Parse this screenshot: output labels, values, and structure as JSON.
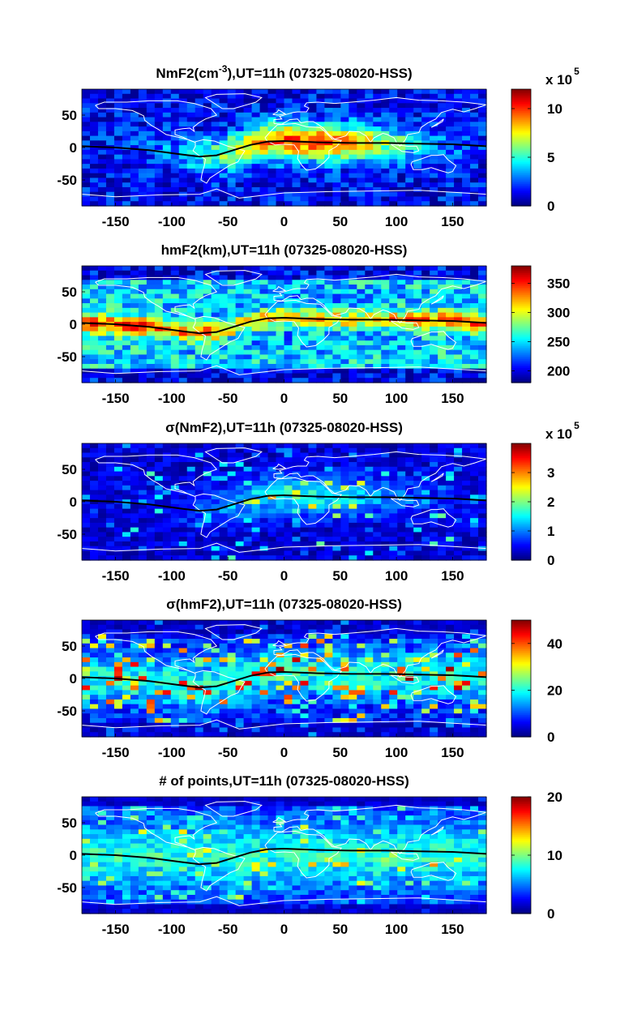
{
  "chart_data": [
    {
      "type": "heatmap",
      "title_main": "NmF2(cm",
      "title_sup": "-3",
      "title_rest": "),UT=11h (07325-08020-HSS)",
      "x_ticks": [
        -150,
        -100,
        -50,
        0,
        50,
        100,
        150
      ],
      "y_ticks": [
        50,
        0,
        -50
      ],
      "xlim": [
        -180,
        180
      ],
      "ylim": [
        -90,
        90
      ],
      "colorbar": {
        "ticks": [
          0,
          5,
          10
        ],
        "min": 0,
        "max": 12,
        "multiplier_text": "x 10",
        "multiplier_exp": "5"
      },
      "field_profile": "nmf2",
      "seed": 11
    },
    {
      "type": "heatmap",
      "title_main": "hmF2(km),UT=11h (07325-08020-HSS)",
      "title_sup": "",
      "title_rest": "",
      "x_ticks": [
        -150,
        -100,
        -50,
        0,
        50,
        100,
        150
      ],
      "y_ticks": [
        50,
        0,
        -50
      ],
      "xlim": [
        -180,
        180
      ],
      "ylim": [
        -90,
        90
      ],
      "colorbar": {
        "ticks": [
          200,
          250,
          300,
          350
        ],
        "min": 180,
        "max": 380,
        "multiplier_text": "",
        "multiplier_exp": ""
      },
      "field_profile": "hmf2",
      "seed": 23
    },
    {
      "type": "heatmap",
      "title_main": "σ(NmF2),UT=11h (07325-08020-HSS)",
      "title_sup": "",
      "title_rest": "",
      "x_ticks": [
        -150,
        -100,
        -50,
        0,
        50,
        100,
        150
      ],
      "y_ticks": [
        50,
        0,
        -50
      ],
      "xlim": [
        -180,
        180
      ],
      "ylim": [
        -90,
        90
      ],
      "colorbar": {
        "ticks": [
          0,
          1,
          2,
          3
        ],
        "min": 0,
        "max": 4,
        "multiplier_text": "x 10",
        "multiplier_exp": "5"
      },
      "field_profile": "signmf2",
      "seed": 37
    },
    {
      "type": "heatmap",
      "title_main": "σ(hmF2),UT=11h (07325-08020-HSS)",
      "title_sup": "",
      "title_rest": "",
      "x_ticks": [
        -150,
        -100,
        -50,
        0,
        50,
        100,
        150
      ],
      "y_ticks": [
        50,
        0,
        -50
      ],
      "xlim": [
        -180,
        180
      ],
      "ylim": [
        -90,
        90
      ],
      "colorbar": {
        "ticks": [
          0,
          20,
          40
        ],
        "min": 0,
        "max": 50,
        "multiplier_text": "",
        "multiplier_exp": ""
      },
      "field_profile": "sighmf2",
      "seed": 41
    },
    {
      "type": "heatmap",
      "title_main": "# of points,UT=11h (07325-08020-HSS)",
      "title_sup": "",
      "title_rest": "",
      "x_ticks": [
        -150,
        -100,
        -50,
        0,
        50,
        100,
        150
      ],
      "y_ticks": [
        50,
        0,
        -50
      ],
      "xlim": [
        -180,
        180
      ],
      "ylim": [
        -90,
        90
      ],
      "colorbar": {
        "ticks": [
          0,
          10,
          20
        ],
        "min": 0,
        "max": 20,
        "multiplier_text": "",
        "multiplier_exp": ""
      },
      "field_profile": "points",
      "seed": 53
    }
  ],
  "magnetic_equator": {
    "lon": [
      -180,
      -150,
      -120,
      -90,
      -75,
      -60,
      -45,
      -30,
      -15,
      0,
      30,
      60,
      90,
      120,
      150,
      180
    ],
    "lat": [
      2,
      0,
      -4,
      -11,
      -14,
      -12,
      -4,
      4,
      9,
      10,
      8,
      7,
      7,
      6,
      5,
      2
    ]
  },
  "grid": {
    "nx": 50,
    "ny": 25
  },
  "colors": {
    "map_outline": "#ffffff",
    "equator_line": "#000000"
  }
}
